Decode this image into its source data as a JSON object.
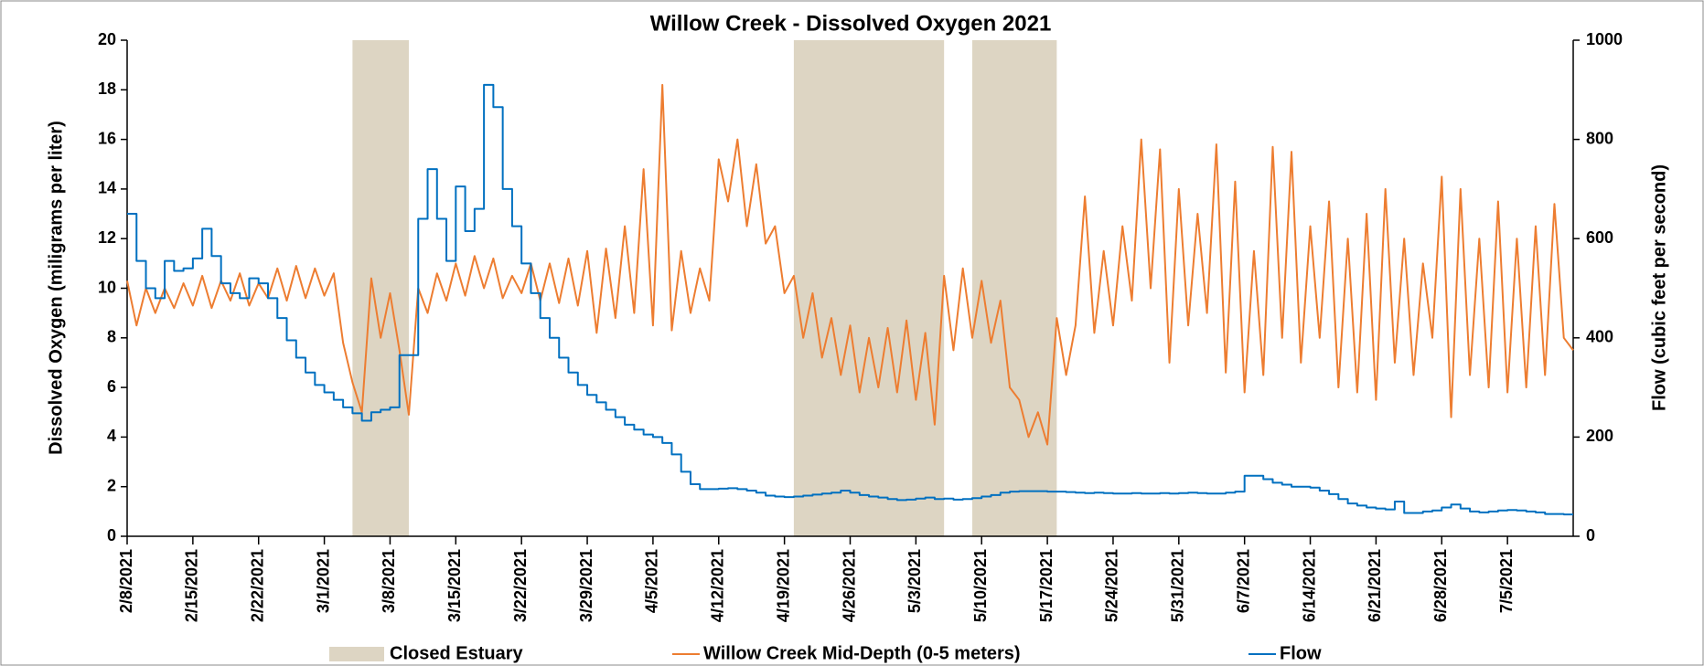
{
  "chart_data": {
    "type": "line",
    "title": "Willow Creek - Dissolved Oxygen 2021",
    "y_label": "Dissolved Oxygen (miligrams per liter)",
    "y2_label": "Flow (cubic feet per second)",
    "xlim": [
      "2021-02-08",
      "2021-07-12"
    ],
    "ylim": [
      0,
      20
    ],
    "yticks": [
      0,
      2,
      4,
      6,
      8,
      10,
      12,
      14,
      16,
      18,
      20
    ],
    "y2lim": [
      0,
      1000
    ],
    "y2ticks": [
      0,
      200,
      400,
      600,
      800,
      1000
    ],
    "xticks": [
      {
        "value": "2021-02-08",
        "label": "2/8/2021"
      },
      {
        "value": "2021-02-15",
        "label": "2/15/2021"
      },
      {
        "value": "2021-02-22",
        "label": "2/22/2021"
      },
      {
        "value": "2021-03-01",
        "label": "3/1/2021"
      },
      {
        "value": "2021-03-08",
        "label": "3/8/2021"
      },
      {
        "value": "2021-03-15",
        "label": "3/15/2021"
      },
      {
        "value": "2021-03-22",
        "label": "3/22/2021"
      },
      {
        "value": "2021-03-29",
        "label": "3/29/2021"
      },
      {
        "value": "2021-04-05",
        "label": "4/5/2021"
      },
      {
        "value": "2021-04-12",
        "label": "4/12/2021"
      },
      {
        "value": "2021-04-19",
        "label": "4/19/2021"
      },
      {
        "value": "2021-04-26",
        "label": "4/26/2021"
      },
      {
        "value": "2021-05-03",
        "label": "5/3/2021"
      },
      {
        "value": "2021-05-10",
        "label": "5/10/2021"
      },
      {
        "value": "2021-05-17",
        "label": "5/17/2021"
      },
      {
        "value": "2021-05-24",
        "label": "5/24/2021"
      },
      {
        "value": "2021-05-31",
        "label": "5/31/2021"
      },
      {
        "value": "2021-06-07",
        "label": "6/7/2021"
      },
      {
        "value": "2021-06-14",
        "label": "6/14/2021"
      },
      {
        "value": "2021-06-21",
        "label": "6/21/2021"
      },
      {
        "value": "2021-06-28",
        "label": "6/28/2021"
      },
      {
        "value": "2021-07-05",
        "label": "7/5/2021"
      }
    ],
    "x": [
      "2021-02-08",
      "2021-02-09",
      "2021-02-10",
      "2021-02-11",
      "2021-02-12",
      "2021-02-13",
      "2021-02-14",
      "2021-02-15",
      "2021-02-16",
      "2021-02-17",
      "2021-02-18",
      "2021-02-19",
      "2021-02-20",
      "2021-02-21",
      "2021-02-22",
      "2021-02-23",
      "2021-02-24",
      "2021-02-25",
      "2021-02-26",
      "2021-02-27",
      "2021-02-28",
      "2021-03-01",
      "2021-03-02",
      "2021-03-03",
      "2021-03-04",
      "2021-03-05",
      "2021-03-06",
      "2021-03-07",
      "2021-03-08",
      "2021-03-09",
      "2021-03-10",
      "2021-03-11",
      "2021-03-12",
      "2021-03-13",
      "2021-03-14",
      "2021-03-15",
      "2021-03-16",
      "2021-03-17",
      "2021-03-18",
      "2021-03-19",
      "2021-03-20",
      "2021-03-21",
      "2021-03-22",
      "2021-03-23",
      "2021-03-24",
      "2021-03-25",
      "2021-03-26",
      "2021-03-27",
      "2021-03-28",
      "2021-03-29",
      "2021-03-30",
      "2021-03-31",
      "2021-04-01",
      "2021-04-02",
      "2021-04-03",
      "2021-04-04",
      "2021-04-05",
      "2021-04-06",
      "2021-04-07",
      "2021-04-08",
      "2021-04-09",
      "2021-04-10",
      "2021-04-11",
      "2021-04-12",
      "2021-04-13",
      "2021-04-14",
      "2021-04-15",
      "2021-04-16",
      "2021-04-17",
      "2021-04-18",
      "2021-04-19",
      "2021-04-20",
      "2021-04-21",
      "2021-04-22",
      "2021-04-23",
      "2021-04-24",
      "2021-04-25",
      "2021-04-26",
      "2021-04-27",
      "2021-04-28",
      "2021-04-29",
      "2021-04-30",
      "2021-05-01",
      "2021-05-02",
      "2021-05-03",
      "2021-05-04",
      "2021-05-05",
      "2021-05-06",
      "2021-05-07",
      "2021-05-08",
      "2021-05-09",
      "2021-05-10",
      "2021-05-11",
      "2021-05-12",
      "2021-05-13",
      "2021-05-14",
      "2021-05-15",
      "2021-05-16",
      "2021-05-17",
      "2021-05-18",
      "2021-05-19",
      "2021-05-20",
      "2021-05-21",
      "2021-05-22",
      "2021-05-23",
      "2021-05-24",
      "2021-05-25",
      "2021-05-26",
      "2021-05-27",
      "2021-05-28",
      "2021-05-29",
      "2021-05-30",
      "2021-05-31",
      "2021-06-01",
      "2021-06-02",
      "2021-06-03",
      "2021-06-04",
      "2021-06-05",
      "2021-06-06",
      "2021-06-07",
      "2021-06-08",
      "2021-06-09",
      "2021-06-10",
      "2021-06-11",
      "2021-06-12",
      "2021-06-13",
      "2021-06-14",
      "2021-06-15",
      "2021-06-16",
      "2021-06-17",
      "2021-06-18",
      "2021-06-19",
      "2021-06-20",
      "2021-06-21",
      "2021-06-22",
      "2021-06-23",
      "2021-06-24",
      "2021-06-25",
      "2021-06-26",
      "2021-06-27",
      "2021-06-28",
      "2021-06-29",
      "2021-06-30",
      "2021-07-01",
      "2021-07-02",
      "2021-07-03",
      "2021-07-04",
      "2021-07-05",
      "2021-07-06",
      "2021-07-07",
      "2021-07-08",
      "2021-07-09",
      "2021-07-10",
      "2021-07-11",
      "2021-07-12"
    ],
    "shaded": {
      "name": "Closed Estuary",
      "color": "#ddd5c3",
      "ranges": [
        [
          "2021-03-04",
          "2021-03-10"
        ],
        [
          "2021-04-20",
          "2021-05-06"
        ],
        [
          "2021-05-09",
          "2021-05-18"
        ]
      ]
    },
    "series": [
      {
        "name": "Willow Creek Mid-Depth (0-5 meters)",
        "color": "#ed7d31",
        "axis": "y",
        "values": [
          10.3,
          8.5,
          10,
          9,
          10,
          9.2,
          10.2,
          9.3,
          10.5,
          9.2,
          10.3,
          9.5,
          10.6,
          9.3,
          10.2,
          9.6,
          10.8,
          9.5,
          10.9,
          9.6,
          10.8,
          9.7,
          10.6,
          7.8,
          6.2,
          5.0,
          10.4,
          8,
          9.8,
          7.5,
          4.9,
          10,
          9.0,
          10.6,
          9.5,
          11,
          9.7,
          11.3,
          10,
          11.2,
          9.6,
          10.5,
          9.8,
          11,
          9.5,
          11,
          9.4,
          11.2,
          9.3,
          11.5,
          8.2,
          11.6,
          8.8,
          12.5,
          9,
          14.8,
          8.5,
          18.2,
          8.3,
          11.5,
          9,
          10.8,
          9.5,
          15.2,
          13.5,
          16,
          12.5,
          15,
          11.8,
          12.5,
          9.8,
          10.5,
          8.0,
          9.8,
          7.2,
          8.8,
          6.5,
          8.5,
          5.8,
          8,
          6,
          8.4,
          5.8,
          8.7,
          5.5,
          8.2,
          4.5,
          10.5,
          7.5,
          10.8,
          8,
          10.3,
          7.8,
          9.5,
          6,
          5.5,
          4,
          5,
          3.7,
          8.8,
          6.5,
          8.5,
          13.7,
          8.2,
          11.5,
          8.5,
          12.5,
          9.5,
          16,
          10,
          15.6,
          7,
          14,
          8.5,
          13,
          9,
          15.8,
          6.6,
          14.3,
          5.8,
          11.5,
          6.5,
          15.7,
          8,
          15.5,
          7,
          12.5,
          8,
          13.5,
          6,
          12,
          5.8,
          13,
          5.5,
          14,
          7,
          12,
          6.5,
          11,
          8,
          14.5,
          4.8,
          14,
          6.5,
          12,
          6,
          13.5,
          5.8,
          12,
          6,
          12.5,
          6.5,
          13.4,
          8,
          7.5
        ]
      },
      {
        "name": "Flow",
        "color": "#0070c0",
        "axis": "y2",
        "step": true,
        "values": [
          650,
          555,
          500,
          480,
          555,
          535,
          540,
          560,
          620,
          565,
          510,
          490,
          480,
          520,
          510,
          480,
          440,
          395,
          360,
          330,
          305,
          290,
          275,
          260,
          248,
          233,
          250,
          255,
          260,
          365,
          365,
          640,
          740,
          640,
          555,
          705,
          615,
          660,
          910,
          865,
          700,
          625,
          550,
          490,
          440,
          400,
          360,
          330,
          305,
          285,
          270,
          255,
          240,
          225,
          215,
          205,
          200,
          188,
          165,
          130,
          105,
          95,
          95,
          96,
          97,
          95,
          92,
          88,
          82,
          80,
          79,
          80,
          82,
          84,
          86,
          88,
          92,
          88,
          83,
          80,
          78,
          75,
          73,
          74,
          76,
          78,
          75,
          76,
          74,
          75,
          77,
          80,
          83,
          88,
          90,
          91,
          91,
          91,
          90,
          90,
          89,
          88,
          87,
          88,
          87,
          86,
          86,
          87,
          86,
          86,
          87,
          86,
          87,
          88,
          87,
          86,
          86,
          88,
          90,
          122,
          122,
          115,
          108,
          104,
          100,
          100,
          98,
          92,
          85,
          75,
          66,
          62,
          58,
          56,
          54,
          70,
          47,
          47,
          50,
          52,
          58,
          64,
          56,
          50,
          48,
          50,
          52,
          53,
          52,
          50,
          48,
          45,
          45,
          44,
          44
        ]
      }
    ]
  }
}
